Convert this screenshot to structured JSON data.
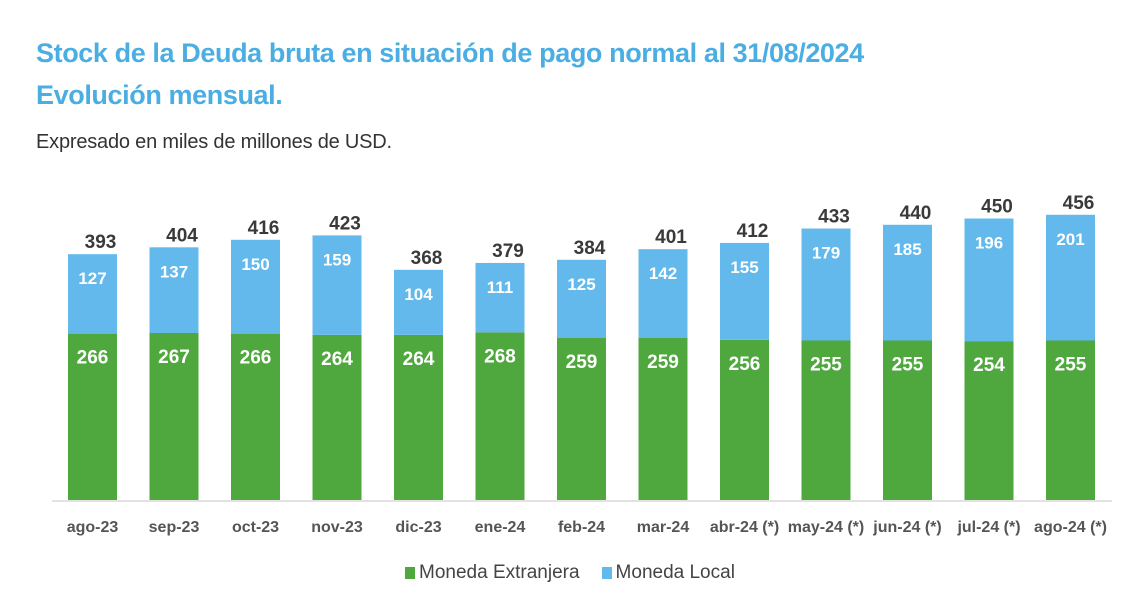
{
  "header": {
    "title_line1": "Stock de la Deuda bruta en situación de pago normal al 31/08/2024",
    "title_line2": "Evolución mensual.",
    "subtitle": "Expresado en miles de millones de USD."
  },
  "colors": {
    "title": "#4aaee3",
    "moneda_extranjera": "#4fa83d",
    "moneda_local": "#63b9ec",
    "total_label": "#3a3a3a",
    "inner_label": "#ffffff",
    "axis": "#d9d9d9"
  },
  "chart_data": {
    "type": "bar",
    "stacked": true,
    "title": "Stock de la Deuda bruta en situación de pago normal al 31/08/2024 Evolución mensual.",
    "subtitle": "Expresado en miles de millones de USD.",
    "xlabel": "",
    "ylabel": "",
    "ylim": [
      0,
      470
    ],
    "grid": false,
    "legend_position": "bottom",
    "categories": [
      "ago-23",
      "sep-23",
      "oct-23",
      "nov-23",
      "dic-23",
      "ene-24",
      "feb-24",
      "mar-24",
      "abr-24 (*)",
      "may-24 (*)",
      "jun-24 (*)",
      "jul-24 (*)",
      "ago-24 (*)"
    ],
    "series": [
      {
        "name": "Moneda Extranjera",
        "values": [
          266,
          267,
          266,
          264,
          264,
          268,
          259,
          259,
          256,
          255,
          255,
          254,
          255
        ]
      },
      {
        "name": "Moneda Local",
        "values": [
          127,
          137,
          150,
          159,
          104,
          111,
          125,
          142,
          155,
          179,
          185,
          196,
          201
        ]
      }
    ],
    "totals": [
      393,
      404,
      416,
      423,
      368,
      379,
      384,
      401,
      412,
      433,
      440,
      450,
      456
    ]
  }
}
